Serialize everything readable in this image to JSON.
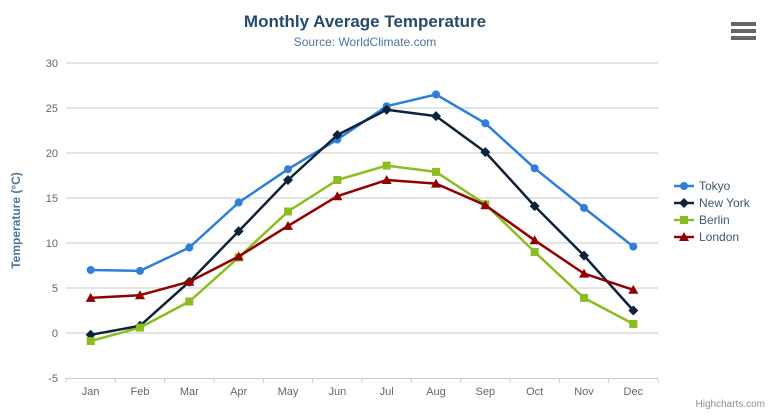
{
  "chart_data": {
    "type": "line",
    "title": "Monthly Average Temperature",
    "subtitle": "Source: WorldClimate.com",
    "xlabel": "",
    "ylabel": "Temperature (°C)",
    "categories": [
      "Jan",
      "Feb",
      "Mar",
      "Apr",
      "May",
      "Jun",
      "Jul",
      "Aug",
      "Sep",
      "Oct",
      "Nov",
      "Dec"
    ],
    "ylim": [
      -5,
      30
    ],
    "ytick_step": 5,
    "yticks": [
      -5,
      0,
      5,
      10,
      15,
      20,
      25,
      30
    ],
    "grid": "horizontal",
    "legend_position": "right",
    "series": [
      {
        "name": "Tokyo",
        "marker": "circle",
        "color": "#2f7ed8",
        "values": [
          7.0,
          6.9,
          9.5,
          14.5,
          18.2,
          21.5,
          25.2,
          26.5,
          23.3,
          18.3,
          13.9,
          9.6
        ]
      },
      {
        "name": "New York",
        "marker": "diamond",
        "color": "#0d233a",
        "values": [
          -0.2,
          0.8,
          5.7,
          11.3,
          17.0,
          22.0,
          24.8,
          24.1,
          20.1,
          14.1,
          8.6,
          2.5
        ]
      },
      {
        "name": "Berlin",
        "marker": "square",
        "color": "#8bbc21",
        "values": [
          -0.9,
          0.6,
          3.5,
          8.4,
          13.5,
          17.0,
          18.6,
          17.9,
          14.3,
          9.0,
          3.9,
          1.0
        ]
      },
      {
        "name": "London",
        "marker": "triangle",
        "color": "#910000",
        "values": [
          3.9,
          4.2,
          5.7,
          8.5,
          11.9,
          15.2,
          17.0,
          16.6,
          14.2,
          10.3,
          6.6,
          4.8
        ]
      }
    ],
    "credits": "Highcharts.com"
  },
  "icons": {
    "export_menu": "hamburger-icon"
  },
  "colors": {
    "title": "#274b6d",
    "subtitle": "#4d759e",
    "axis_title": "#4d759e",
    "axis_label": "#666666",
    "grid": "#c8c8c8",
    "axis_line": "#c0d0e0",
    "legend_text": "#3E576F",
    "credits": "#909090",
    "export_icon": "#666666",
    "background": "#ffffff"
  }
}
